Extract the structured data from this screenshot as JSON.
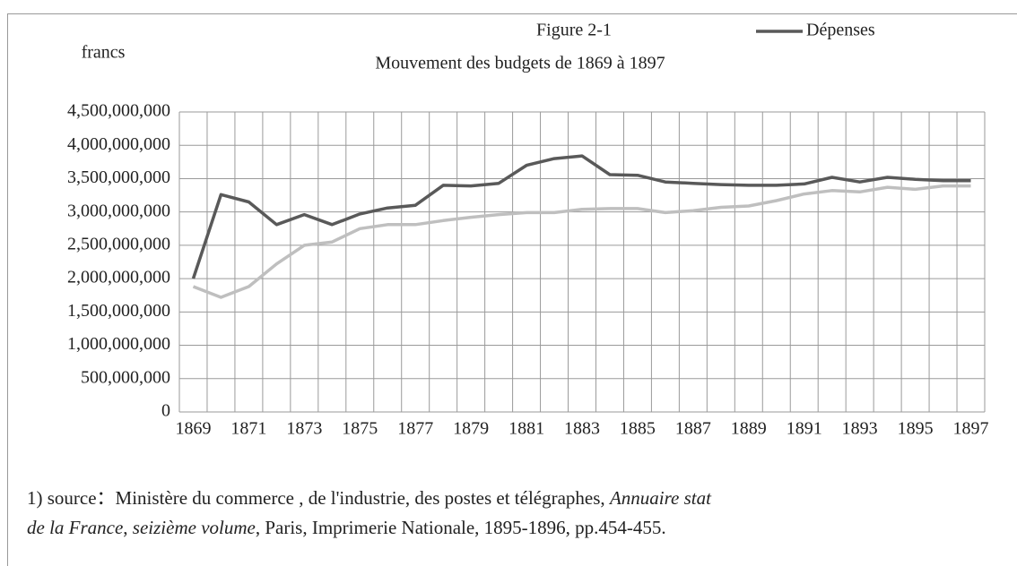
{
  "chart_data": {
    "type": "line",
    "title": "Figure 2-1",
    "subtitle": "Mouvement des budgets de 1869 à 1897",
    "y_label": "francs",
    "categories": [
      "1869",
      null,
      "1871",
      null,
      "1873",
      null,
      "1875",
      null,
      "1877",
      null,
      "1879",
      null,
      "1881",
      null,
      "1883",
      null,
      "1885",
      null,
      "1887",
      null,
      "1889",
      null,
      "1891",
      null,
      "1893",
      null,
      "1895",
      null,
      "1897"
    ],
    "series": [
      {
        "name": "Dépenses",
        "color": "#595959",
        "values": [
          2000000000,
          3260000000,
          3150000000,
          2810000000,
          2960000000,
          2810000000,
          2970000000,
          3060000000,
          3100000000,
          3400000000,
          3390000000,
          3430000000,
          3700000000,
          3800000000,
          3840000000,
          3560000000,
          3550000000,
          3450000000,
          3430000000,
          3410000000,
          3400000000,
          3400000000,
          3420000000,
          3520000000,
          3450000000,
          3520000000,
          3490000000,
          3470000000,
          3470000000
        ]
      },
      {
        "color": "#bfbfbf",
        "values": [
          1880000000,
          1720000000,
          1880000000,
          2220000000,
          2500000000,
          2550000000,
          2750000000,
          2810000000,
          2810000000,
          2870000000,
          2920000000,
          2960000000,
          2990000000,
          2990000000,
          3040000000,
          3050000000,
          3050000000,
          2990000000,
          3020000000,
          3070000000,
          3090000000,
          3170000000,
          3270000000,
          3320000000,
          3300000000,
          3370000000,
          3340000000,
          3390000000,
          3390000000
        ]
      }
    ],
    "ylim": [
      0,
      4500000000
    ],
    "yticks": [
      0,
      {
        "value": 500000000,
        "label": "500,000,000"
      },
      {
        "value": 1000000000,
        "label": "1,000,000,000"
      },
      {
        "value": 1500000000,
        "label": "1,500,000,000"
      },
      {
        "value": 2000000000,
        "label": "2,000,000,000"
      },
      {
        "value": 2500000000,
        "label": "2,500,000,000"
      },
      {
        "value": 3000000000,
        "label": "3,000,000,000"
      },
      {
        "value": 3500000000,
        "label": "3,500,000,000"
      },
      {
        "value": 4000000000,
        "label": "4,000,000,000"
      },
      {
        "value": 4500000000,
        "label": "4,500,000,000"
      }
    ],
    "grid": true,
    "legend": "top-right",
    "footnote": [
      [
        {
          "text": "1) source：Ministère du commerce , de l'industrie, des postes et télégraphes, ",
          "italic": false
        },
        {
          "text": "Annuaire stat",
          "italic": true
        }
      ],
      [
        {
          "text": "de la France",
          "italic": true
        },
        {
          "text": ", ",
          "italic": false
        },
        {
          "text": "seizième volume",
          "italic": true
        },
        {
          "text": ", Paris, Imprimerie Nationale, 1895-1896, pp.454-455.",
          "italic": false
        }
      ]
    ]
  }
}
